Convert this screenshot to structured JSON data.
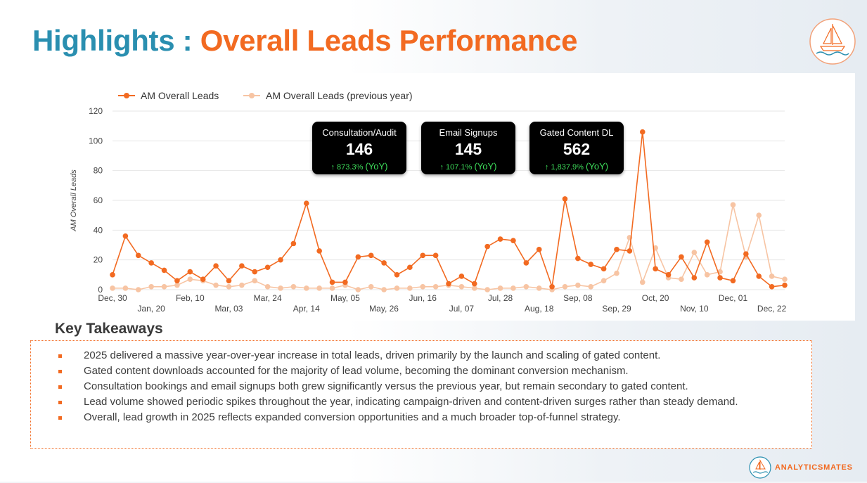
{
  "title": {
    "part1": "Highlights : ",
    "part2": "Overall Leads Performance"
  },
  "brand": {
    "logo_text": "ANALYTICSMATES"
  },
  "kpis": [
    {
      "label": "Consultation/Audit",
      "value": "146",
      "delta": "↑ 873.3%",
      "suffix": "(YoY)"
    },
    {
      "label": "Email Signups",
      "value": "145",
      "delta": "↑ 107.1%",
      "suffix": "(YoY)"
    },
    {
      "label": "Gated Content DL",
      "value": "562",
      "delta": "↑ 1,837.9%",
      "suffix": "(YoY)"
    }
  ],
  "takeaways": {
    "title": "Key Takeaways",
    "items": [
      "2025 delivered a massive year-over-year increase in total leads, driven primarily by the launch and scaling of gated content.",
      "Gated content downloads accounted for the majority of lead volume, becoming the dominant conversion mechanism.",
      "Consultation bookings and email signups both grew significantly versus the previous year, but remain secondary to gated content.",
      "Lead volume showed periodic spikes throughout the year, indicating campaign-driven and content-driven surges rather than steady demand.",
      "Overall, lead growth in 2025 reflects expanded conversion opportunities and a much broader top-of-funnel strategy."
    ]
  },
  "colors": {
    "title_blue": "#2a8fb0",
    "accent_orange": "#f26a21",
    "series_current": "#f26a21",
    "series_previous": "#f7c4a3",
    "kpi_green": "#3ddc5a"
  },
  "chart_data": {
    "type": "line",
    "title": "",
    "xlabel": "",
    "ylabel": "AM Overall Leads",
    "ylim": [
      0,
      120
    ],
    "yticks": [
      0,
      20,
      40,
      60,
      80,
      100,
      120
    ],
    "grid": true,
    "legend": "top-left",
    "tick_labels_row1": [
      "Dec, 30",
      "Feb, 10",
      "Mar, 24",
      "May, 05",
      "Jun, 16",
      "Jul, 28",
      "Sep, 08",
      "Oct, 20",
      "Dec, 01"
    ],
    "tick_labels_row2": [
      "Jan, 20",
      "Mar, 03",
      "Apr, 14",
      "May, 26",
      "Jul, 07",
      "Aug, 18",
      "Sep, 29",
      "Nov, 10",
      "Dec, 22"
    ],
    "x_tick_index_row1": [
      0,
      6,
      12,
      18,
      24,
      30,
      36,
      42,
      48
    ],
    "x_tick_index_row2": [
      3,
      9,
      15,
      21,
      27,
      33,
      39,
      45,
      51
    ],
    "series": [
      {
        "name": "AM Overall Leads",
        "values": [
          10,
          36,
          23,
          18,
          13,
          6,
          12,
          7,
          16,
          6,
          16,
          12,
          15,
          20,
          31,
          58,
          26,
          5,
          5,
          22,
          23,
          18,
          10,
          15,
          23,
          23,
          4,
          9,
          4,
          29,
          34,
          33,
          18,
          27,
          2,
          61,
          21,
          17,
          14,
          27,
          26,
          106,
          14,
          10,
          22,
          8,
          32,
          8,
          6,
          24,
          9,
          2,
          3
        ]
      },
      {
        "name": "AM Overall Leads (previous year)",
        "values": [
          1,
          1,
          0,
          2,
          2,
          3,
          7,
          6,
          3,
          2,
          3,
          6,
          2,
          1,
          2,
          1,
          1,
          1,
          3,
          0,
          2,
          0,
          1,
          1,
          2,
          2,
          3,
          2,
          1,
          0,
          1,
          1,
          2,
          1,
          0,
          2,
          3,
          2,
          6,
          11,
          35,
          5,
          28,
          8,
          7,
          25,
          10,
          12,
          57,
          22,
          50,
          9,
          7
        ]
      }
    ]
  }
}
